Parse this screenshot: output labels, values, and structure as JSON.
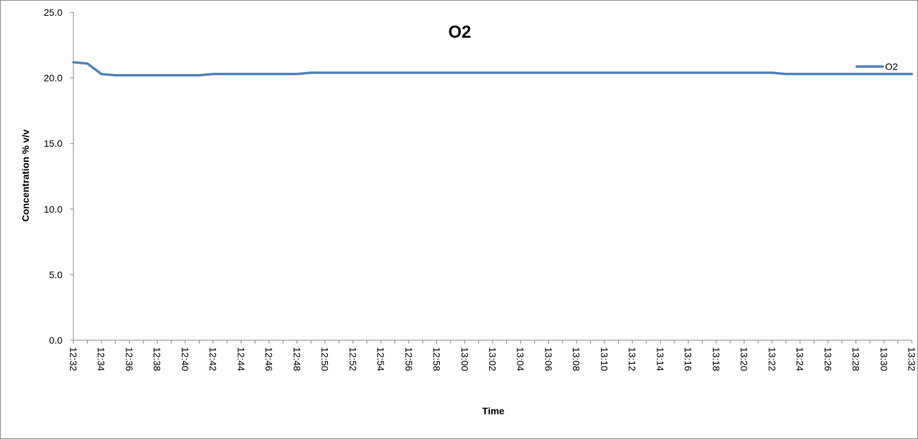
{
  "chart_data": {
    "type": "line",
    "title": "O2",
    "xlabel": "Time",
    "ylabel": "Concentration % v/v",
    "ylim": [
      0,
      25
    ],
    "y_ticks": [
      "0.0",
      "5.0",
      "10.0",
      "15.0",
      "20.0",
      "25.0"
    ],
    "x_ticks": [
      "12:32",
      "12:34",
      "12:36",
      "12:38",
      "12:40",
      "12:42",
      "12:44",
      "12:46",
      "12:48",
      "12:50",
      "12:52",
      "12:54",
      "12:56",
      "12:58",
      "13:00",
      "13:02",
      "13:04",
      "13:06",
      "13:08",
      "13:10",
      "13:12",
      "13:14",
      "13:16",
      "13:18",
      "13:20",
      "13:22",
      "13:24",
      "13:26",
      "13:28",
      "13:30",
      "13:32"
    ],
    "grid": false,
    "legend_position": "right",
    "series": [
      {
        "name": "O2",
        "color": "#4F81BD",
        "x": [
          "12:32",
          "12:33",
          "12:34",
          "12:35",
          "12:36",
          "12:37",
          "12:38",
          "12:39",
          "12:40",
          "12:41",
          "12:42",
          "12:43",
          "12:44",
          "12:45",
          "12:46",
          "12:47",
          "12:48",
          "12:49",
          "12:50",
          "12:51",
          "12:52",
          "12:53",
          "12:54",
          "12:55",
          "12:56",
          "12:57",
          "12:58",
          "12:59",
          "13:00",
          "13:01",
          "13:02",
          "13:03",
          "13:04",
          "13:05",
          "13:06",
          "13:07",
          "13:08",
          "13:09",
          "13:10",
          "13:11",
          "13:12",
          "13:13",
          "13:14",
          "13:15",
          "13:16",
          "13:17",
          "13:18",
          "13:19",
          "13:20",
          "13:21",
          "13:22",
          "13:23",
          "13:24",
          "13:25",
          "13:26",
          "13:27",
          "13:28",
          "13:29",
          "13:30",
          "13:31",
          "13:32"
        ],
        "values": [
          21.2,
          21.1,
          20.3,
          20.2,
          20.2,
          20.2,
          20.2,
          20.2,
          20.2,
          20.2,
          20.3,
          20.3,
          20.3,
          20.3,
          20.3,
          20.3,
          20.3,
          20.4,
          20.4,
          20.4,
          20.4,
          20.4,
          20.4,
          20.4,
          20.4,
          20.4,
          20.4,
          20.4,
          20.4,
          20.4,
          20.4,
          20.4,
          20.4,
          20.4,
          20.4,
          20.4,
          20.4,
          20.4,
          20.4,
          20.4,
          20.4,
          20.4,
          20.4,
          20.4,
          20.4,
          20.4,
          20.4,
          20.4,
          20.4,
          20.4,
          20.4,
          20.3,
          20.3,
          20.3,
          20.3,
          20.3,
          20.3,
          20.3,
          20.3,
          20.3,
          20.3
        ]
      }
    ]
  }
}
